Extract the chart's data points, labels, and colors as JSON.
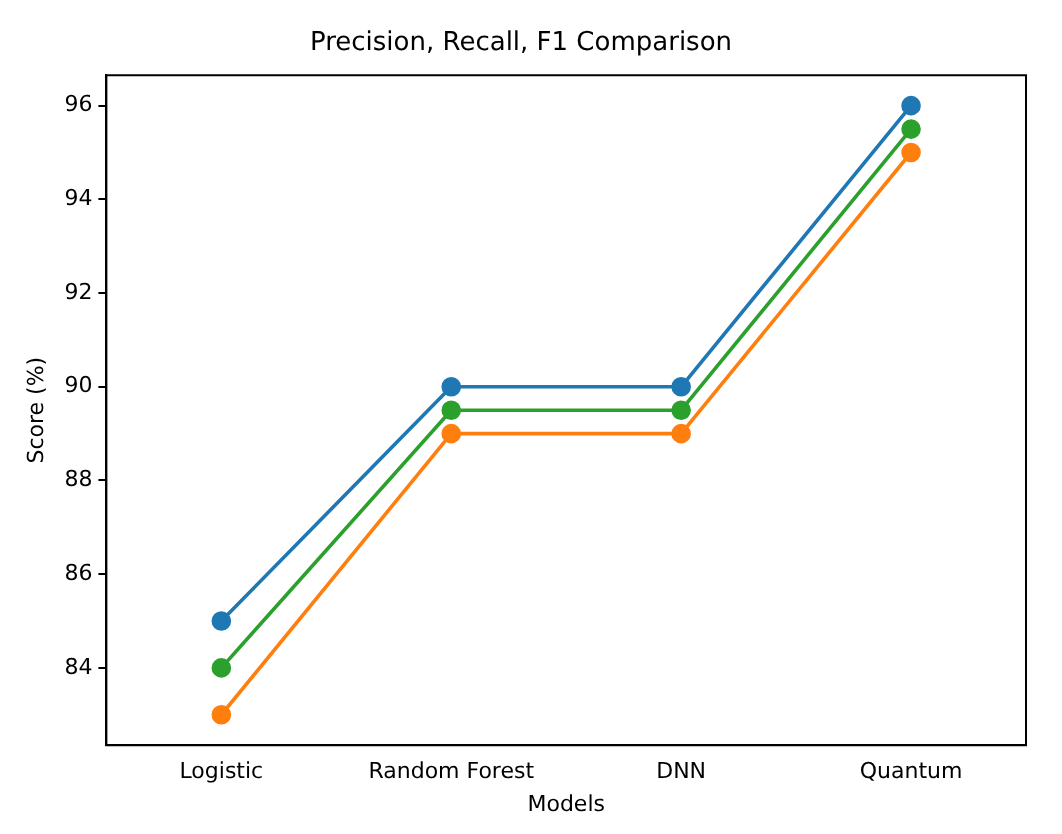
{
  "chart_data": {
    "type": "line",
    "title": "Precision, Recall, F1 Comparison",
    "xlabel": "Models",
    "ylabel": "Score (%)",
    "categories": [
      "Logistic",
      "Random Forest",
      "DNN",
      "Quantum"
    ],
    "series": [
      {
        "color": "#1f77b4",
        "values": [
          85,
          90,
          90,
          96
        ]
      },
      {
        "color": "#ff7f0e",
        "values": [
          83,
          89,
          89,
          95
        ]
      },
      {
        "color": "#2ca02c",
        "values": [
          84,
          89.5,
          89.5,
          95.5
        ]
      }
    ],
    "ylim": [
      82.35,
      96.65
    ],
    "yticks": [
      84,
      86,
      88,
      90,
      92,
      94,
      96
    ],
    "marker": "circle",
    "line_style": "solid",
    "grid": false,
    "legend": false
  }
}
